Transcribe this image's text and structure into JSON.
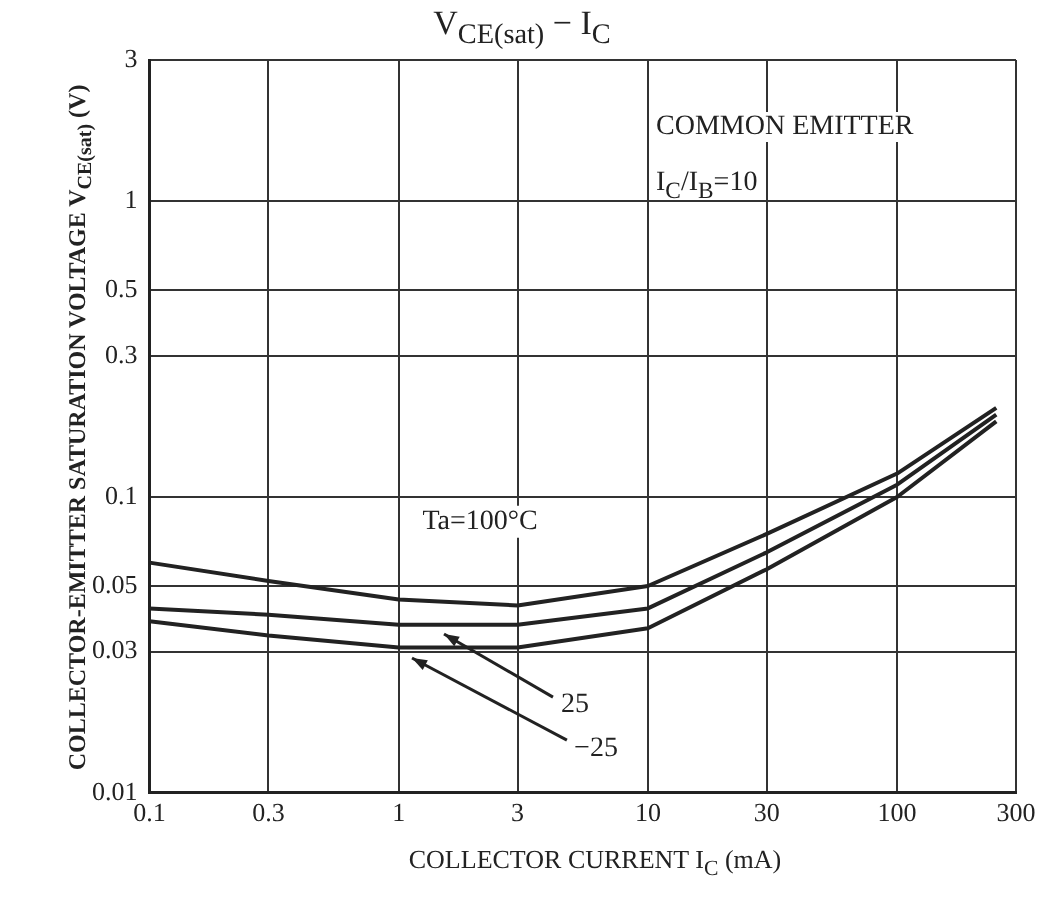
{
  "chart_data": {
    "type": "line",
    "title": "V$_{CE(sat)}$ − I$_{C}$",
    "xlabel": "COLLECTOR CURRENT   I$_{C}$   (mA)",
    "ylabel": "COLLECTOR-EMITTER SATURATION VOLTAGE   V$_{CE(sat)}$   (V)",
    "log": "xy",
    "grid": true,
    "legend": false,
    "marker": "none",
    "line_style": "solid",
    "xlim": [
      0.1,
      300
    ],
    "xticks": [
      0.1,
      0.3,
      1,
      3,
      10,
      30,
      100,
      300
    ],
    "ylim": [
      0.01,
      3
    ],
    "yticks": [
      0.01,
      0.03,
      0.05,
      0.1,
      0.3,
      0.5,
      1,
      3
    ],
    "annotations": [
      "COMMON EMITTER",
      "I$_{C}$/I$_{B}$=10",
      "Ta=100°C",
      "25",
      "−25"
    ],
    "x": [
      0.1,
      0.3,
      1,
      3,
      10,
      30,
      100,
      250
    ],
    "series": [
      {
        "color": "#222222",
        "values": [
          0.06,
          0.052,
          0.045,
          0.043,
          0.05,
          0.075,
          0.12,
          0.2
        ]
      },
      {
        "color": "#222222",
        "values": [
          0.042,
          0.04,
          0.037,
          0.037,
          0.042,
          0.065,
          0.11,
          0.19
        ]
      },
      {
        "color": "#222222",
        "values": [
          0.038,
          0.034,
          0.031,
          0.031,
          0.036,
          0.057,
          0.1,
          0.18
        ]
      }
    ]
  }
}
